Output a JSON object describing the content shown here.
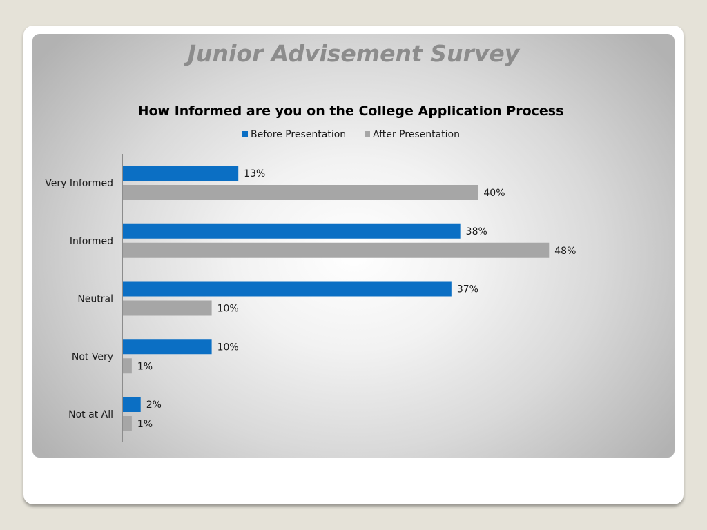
{
  "slide": {
    "title": "Junior Advisement Survey"
  },
  "colors": {
    "before": "#0b6fc4",
    "after": "#a6a6a6",
    "axis": "#8c8c8c",
    "text": "#1a1a1a"
  },
  "chart_data": {
    "type": "bar",
    "orientation": "horizontal",
    "title": "How Informed are you on the College Application Process",
    "xlabel": "",
    "ylabel": "",
    "legend_position": "top",
    "grid": false,
    "categories": [
      "Very Informed",
      "Informed",
      "Neutral",
      "Not Very",
      "Not at All"
    ],
    "series": [
      {
        "name": "Before Presentation",
        "values": [
          13,
          38,
          37,
          10,
          2
        ],
        "labels": [
          "13%",
          "38%",
          "37%",
          "10%",
          "2%"
        ]
      },
      {
        "name": "After Presentation",
        "values": [
          40,
          48,
          10,
          1,
          1
        ],
        "labels": [
          "40%",
          "48%",
          "10%",
          "1%",
          "1%"
        ]
      }
    ],
    "unit": "%",
    "xlim": [
      0,
      50
    ]
  }
}
